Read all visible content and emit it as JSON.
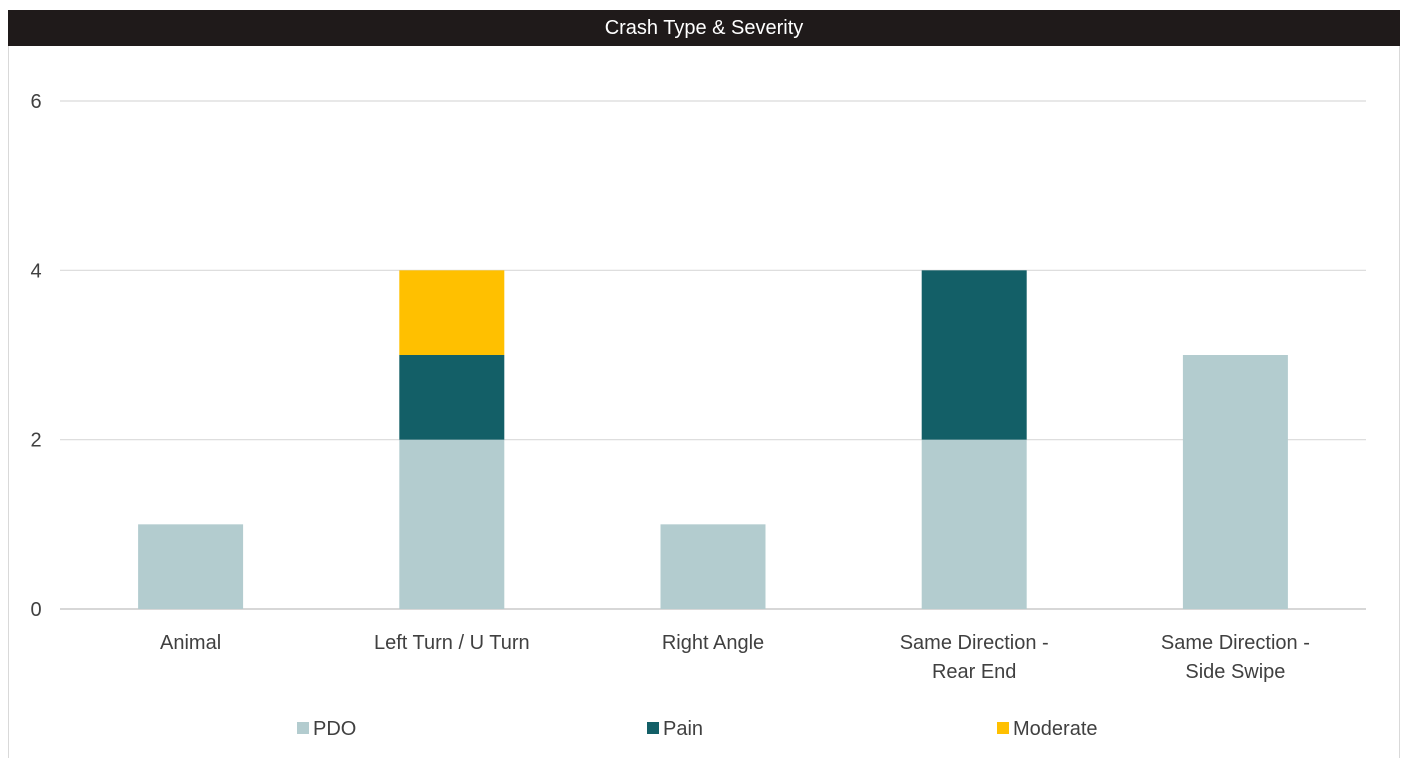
{
  "chart_data": {
    "type": "bar",
    "stacked": true,
    "title": "Crash Type & Severity",
    "categories": [
      [
        "Animal"
      ],
      [
        "Left Turn / U Turn"
      ],
      [
        "Right Angle"
      ],
      [
        "Same Direction -",
        "Rear End"
      ],
      [
        "Same Direction -",
        "Side Swipe"
      ]
    ],
    "series": [
      {
        "name": "PDO",
        "color": "#b3cccf",
        "values": [
          1,
          2,
          1,
          2,
          3
        ]
      },
      {
        "name": "Pain",
        "color": "#135f67",
        "values": [
          0,
          1,
          0,
          2,
          0
        ]
      },
      {
        "name": "Moderate",
        "color": "#ffc000",
        "values": [
          0,
          1,
          0,
          0,
          0
        ]
      }
    ],
    "ylim": [
      0,
      6
    ],
    "yticks": [
      0,
      2,
      4,
      6
    ],
    "grid": true,
    "legend_position": "bottom",
    "xlabel": "",
    "ylabel": ""
  }
}
